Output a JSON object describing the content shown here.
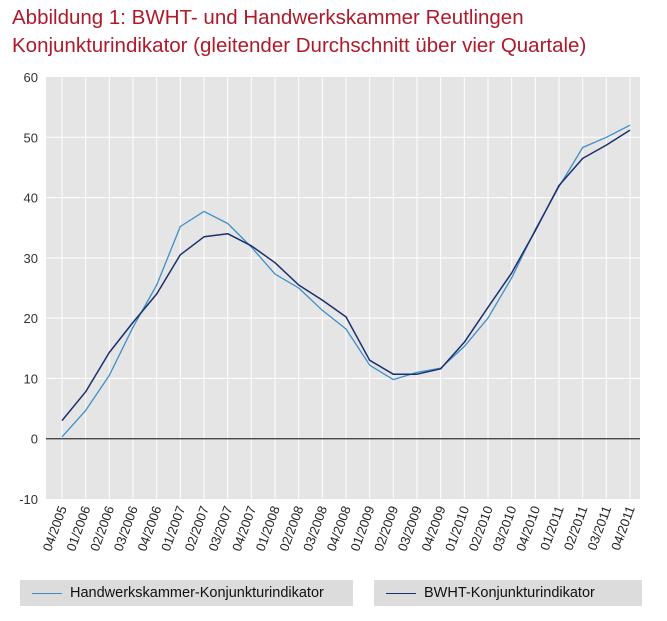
{
  "header": {
    "title_line1": "Abbildung 1: BWHT- und Handwerkskammer  Reutlingen",
    "title_line2": "Konjunkturindikator (gleitender Durchschnitt über vier Quartale)"
  },
  "colors": {
    "title": "#b0192a",
    "plot_background": "#e5e5e5",
    "grid": "#ffffff",
    "handwerkskammer_line": "#3e8fc8",
    "bwht_line": "#1b2f6e",
    "legend_background": "#dcdcdc"
  },
  "chart_data": {
    "type": "line",
    "title": "",
    "xlabel": "",
    "ylabel": "",
    "ylim": [
      -10,
      60
    ],
    "yticks": [
      -10,
      0,
      10,
      20,
      30,
      40,
      50,
      60
    ],
    "grid": true,
    "legend_position": "bottom",
    "categories": [
      "04/2005",
      "01/2006",
      "02/2006",
      "03/2006",
      "04/2006",
      "01/2007",
      "02/2007",
      "03/2007",
      "04/2007",
      "01/2008",
      "02/2008",
      "03/2008",
      "04/2008",
      "01/2009",
      "02/2009",
      "03/2009",
      "04/2009",
      "01/2010",
      "02/2010",
      "03/2010",
      "04/2010",
      "01/2011",
      "02/2011",
      "03/2011",
      "04/2011"
    ],
    "series": [
      {
        "name": "Handwerkskammer-Konjunkturindikator",
        "values": [
          0.3,
          4.7,
          10.5,
          18.5,
          25.5,
          35.2,
          37.7,
          35.7,
          31.8,
          27.3,
          25.0,
          21.3,
          18.2,
          12.2,
          9.8,
          11.0,
          11.7,
          15.3,
          20.0,
          26.7,
          34.7,
          41.8,
          48.3,
          50.0,
          52.0
        ],
        "color": "#3e8fc8"
      },
      {
        "name": "BWHT-Konjunkturindikator",
        "values": [
          3.0,
          7.8,
          14.3,
          19.3,
          24.0,
          30.5,
          33.5,
          34.0,
          32.0,
          29.2,
          25.5,
          23.0,
          20.2,
          13.0,
          10.7,
          10.7,
          11.6,
          16.0,
          21.8,
          27.5,
          34.5,
          42.0,
          46.5,
          48.7,
          51.2
        ],
        "color": "#1b2f6e"
      }
    ]
  }
}
